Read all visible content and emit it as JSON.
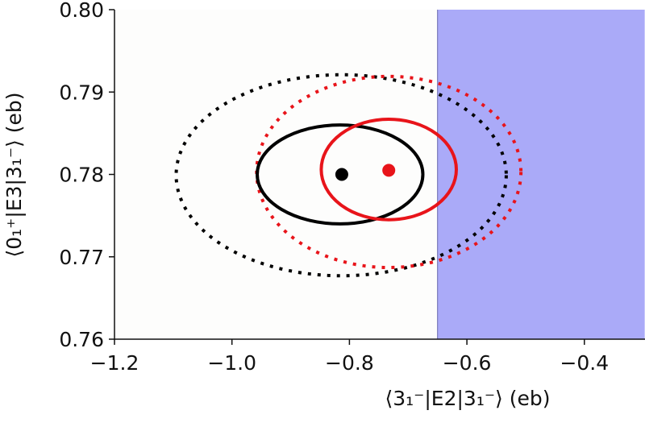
{
  "chart_data": {
    "type": "scatter",
    "title": "",
    "xlabel": "⟨3₁⁻|E2|3₁⁻⟩ (eb)",
    "ylabel": "⟨0₁⁺|E3|3₁⁻⟩ (eb)",
    "xlim": [
      -1.2,
      -0.3
    ],
    "ylim": [
      0.76,
      0.8
    ],
    "xticks": [
      -1.2,
      -1.0,
      -0.8,
      -0.6,
      -0.4
    ],
    "xtick_labels": [
      "−1.2",
      "−1.0",
      "−0.8",
      "−0.6",
      "−0.4"
    ],
    "yticks": [
      0.76,
      0.77,
      0.78,
      0.79,
      0.8
    ],
    "ytick_labels": [
      "0.76",
      "0.77",
      "0.78",
      "0.79",
      "0.80"
    ],
    "grid": false,
    "shaded_region": {
      "x_from": -0.65,
      "x_to": -0.3,
      "color": "#aaaaf8"
    },
    "points": [
      {
        "name": "black",
        "x": -0.813,
        "y": 0.78,
        "color": "#000000"
      },
      {
        "name": "red",
        "x": -0.733,
        "y": 0.7805,
        "color": "#e8141a"
      }
    ],
    "ellipses": [
      {
        "name": "black-2sigma",
        "cx": -0.814,
        "cy": 0.7799,
        "rx": 0.281,
        "ry": 0.0122,
        "color": "#000000",
        "style": "dotted"
      },
      {
        "name": "red-2sigma",
        "cx": -0.733,
        "cy": 0.7803,
        "rx": 0.225,
        "ry": 0.0116,
        "color": "#e8141a",
        "style": "dotted"
      },
      {
        "name": "black-1sigma",
        "cx": -0.816,
        "cy": 0.78,
        "rx": 0.141,
        "ry": 0.006,
        "color": "#000000",
        "style": "solid"
      },
      {
        "name": "red-1sigma",
        "cx": -0.733,
        "cy": 0.7806,
        "rx": 0.115,
        "ry": 0.0061,
        "color": "#e8141a",
        "style": "solid"
      }
    ]
  }
}
